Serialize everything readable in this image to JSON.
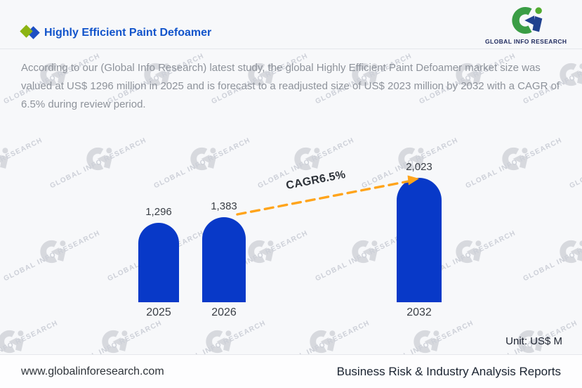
{
  "header": {
    "title": "Highly Efficient Paint Defoamer",
    "logo_caption": "GLOBAL INFO RESEARCH"
  },
  "description": "According to our (Global Info Research) latest study, the global Highly Efficient Paint Defoamer market size was valued at US$ 1296 million in 2025 and is forecast to a readjusted size of US$ 2023 million by 2032 with a CAGR of 6.5% during review period.",
  "chart_data": {
    "type": "bar",
    "categories": [
      "2025",
      "2026",
      "2032"
    ],
    "values": [
      1296,
      1383,
      2023
    ],
    "value_labels": [
      "1,296",
      "1,383",
      "2,023"
    ],
    "annotation": "CAGR6.5%",
    "unit_label": "Unit: US$ M",
    "bar_color": "#0839c8",
    "arrow_color": "#FFA41B",
    "ylim": [
      0,
      2320
    ],
    "grid": false,
    "legend": false
  },
  "watermark_text": "GLOBAL INFO RESEARCH",
  "footer": {
    "website": "www.globalinforesearch.com",
    "tagline": "Business Risk & Industry Analysis Reports"
  }
}
